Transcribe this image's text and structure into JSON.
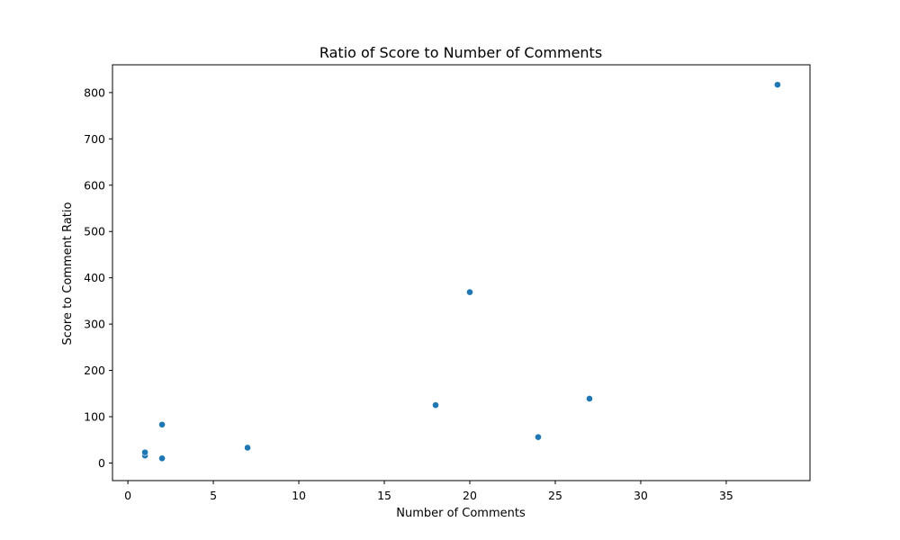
{
  "chart_data": {
    "type": "scatter",
    "title": "Ratio of Score to Number of Comments",
    "xlabel": "Number of Comments",
    "ylabel": "Score to Comment Ratio",
    "xlim": [
      -0.9,
      39.9
    ],
    "ylim": [
      -38,
      860
    ],
    "xticks": [
      0,
      5,
      10,
      15,
      20,
      25,
      30,
      35
    ],
    "yticks": [
      0,
      100,
      200,
      300,
      400,
      500,
      600,
      700,
      800
    ],
    "grid": false,
    "legend": "none",
    "marker_color": "#1f77b4",
    "points": [
      {
        "x": 1,
        "y": 16
      },
      {
        "x": 1,
        "y": 23
      },
      {
        "x": 2,
        "y": 83
      },
      {
        "x": 2,
        "y": 10
      },
      {
        "x": 7,
        "y": 33
      },
      {
        "x": 18,
        "y": 125
      },
      {
        "x": 20,
        "y": 369
      },
      {
        "x": 24,
        "y": 56
      },
      {
        "x": 27,
        "y": 139
      },
      {
        "x": 38,
        "y": 817
      }
    ]
  }
}
